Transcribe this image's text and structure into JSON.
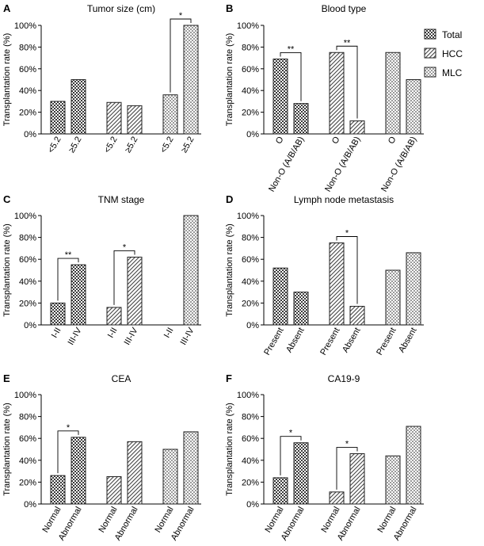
{
  "figure": {
    "legend": [
      {
        "name": "Total",
        "pattern": "dark-check"
      },
      {
        "name": "HCC",
        "pattern": "diag-hatch"
      },
      {
        "name": "MLC",
        "pattern": "light-check"
      }
    ],
    "colors": {
      "axis": "#000000",
      "bar_stroke": "#222222",
      "background": "#ffffff"
    }
  },
  "chart_data": [
    {
      "panel": "A",
      "type": "bar",
      "title": "Tumor size (cm)",
      "ylabel": "Transplantation rate (%)",
      "ylim": [
        0,
        100
      ],
      "yticks": [
        "0%",
        "20%",
        "40%",
        "60%",
        "80%",
        "100%"
      ],
      "groups": [
        {
          "series": "Total",
          "categories": [
            "<5.2",
            "≥5.2"
          ],
          "values": [
            30,
            50
          ]
        },
        {
          "series": "HCC",
          "categories": [
            "<5.2",
            "≥5.2"
          ],
          "values": [
            29,
            26
          ]
        },
        {
          "series": "MLC",
          "categories": [
            "<5.2",
            "≥5.2"
          ],
          "values": [
            36,
            100
          ]
        }
      ],
      "significance": [
        {
          "group": 2,
          "label": "*"
        }
      ]
    },
    {
      "panel": "B",
      "type": "bar",
      "title": "Blood type",
      "ylabel": "Transplantation rate (%)",
      "ylim": [
        0,
        100
      ],
      "yticks": [
        "0%",
        "20%",
        "40%",
        "60%",
        "80%",
        "100%"
      ],
      "groups": [
        {
          "series": "Total",
          "categories": [
            "O",
            "Non-O (A/B/AB)"
          ],
          "values": [
            69,
            28
          ]
        },
        {
          "series": "HCC",
          "categories": [
            "O",
            "Non-O (A/B/AB)"
          ],
          "values": [
            75,
            12
          ]
        },
        {
          "series": "MLC",
          "categories": [
            "O",
            "Non-O (A/B/AB)"
          ],
          "values": [
            75,
            50
          ]
        }
      ],
      "significance": [
        {
          "group": 0,
          "label": "**"
        },
        {
          "group": 1,
          "label": "**"
        }
      ]
    },
    {
      "panel": "C",
      "type": "bar",
      "title": "TNM stage",
      "ylabel": "Transplantation rate (%)",
      "ylim": [
        0,
        100
      ],
      "yticks": [
        "0%",
        "20%",
        "40%",
        "60%",
        "80%",
        "100%"
      ],
      "groups": [
        {
          "series": "Total",
          "categories": [
            "I-II",
            "III-IV"
          ],
          "values": [
            20,
            55
          ]
        },
        {
          "series": "HCC",
          "categories": [
            "I-II",
            "III-IV"
          ],
          "values": [
            16,
            62
          ]
        },
        {
          "series": "MLC",
          "categories": [
            "I-II",
            "III-IV"
          ],
          "values": [
            0,
            100
          ]
        }
      ],
      "significance": [
        {
          "group": 0,
          "label": "**"
        },
        {
          "group": 1,
          "label": "*"
        }
      ]
    },
    {
      "panel": "D",
      "type": "bar",
      "title": "Lymph node metastasis",
      "ylabel": "Transplantation rate (%)",
      "ylim": [
        0,
        100
      ],
      "yticks": [
        "0%",
        "20%",
        "40%",
        "60%",
        "80%",
        "100%"
      ],
      "groups": [
        {
          "series": "Total",
          "categories": [
            "Present",
            "Absent"
          ],
          "values": [
            52,
            30
          ]
        },
        {
          "series": "HCC",
          "categories": [
            "Present",
            "Absent"
          ],
          "values": [
            75,
            17
          ]
        },
        {
          "series": "MLC",
          "categories": [
            "Present",
            "Absent"
          ],
          "values": [
            50,
            66
          ]
        }
      ],
      "significance": [
        {
          "group": 1,
          "label": "*"
        }
      ]
    },
    {
      "panel": "E",
      "type": "bar",
      "title": "CEA",
      "ylabel": "Transplantation rate (%)",
      "ylim": [
        0,
        100
      ],
      "yticks": [
        "0%",
        "20%",
        "40%",
        "60%",
        "80%",
        "100%"
      ],
      "groups": [
        {
          "series": "Total",
          "categories": [
            "Normal",
            "Abnormal"
          ],
          "values": [
            26,
            61
          ]
        },
        {
          "series": "HCC",
          "categories": [
            "Normal",
            "Abnormal"
          ],
          "values": [
            25,
            57
          ]
        },
        {
          "series": "MLC",
          "categories": [
            "Normal",
            "Abnormal"
          ],
          "values": [
            50,
            66
          ]
        }
      ],
      "significance": [
        {
          "group": 0,
          "label": "*"
        }
      ]
    },
    {
      "panel": "F",
      "type": "bar",
      "title": "CA19-9",
      "ylabel": "Transplantation rate (%)",
      "ylim": [
        0,
        100
      ],
      "yticks": [
        "0%",
        "20%",
        "40%",
        "60%",
        "80%",
        "100%"
      ],
      "groups": [
        {
          "series": "Total",
          "categories": [
            "Normal",
            "Abnormal"
          ],
          "values": [
            24,
            56
          ]
        },
        {
          "series": "HCC",
          "categories": [
            "Normal",
            "Abnormal"
          ],
          "values": [
            11,
            46
          ]
        },
        {
          "series": "MLC",
          "categories": [
            "Normal",
            "Abnormal"
          ],
          "values": [
            44,
            71
          ]
        }
      ],
      "significance": [
        {
          "group": 0,
          "label": "*"
        },
        {
          "group": 1,
          "label": "*"
        }
      ]
    }
  ]
}
